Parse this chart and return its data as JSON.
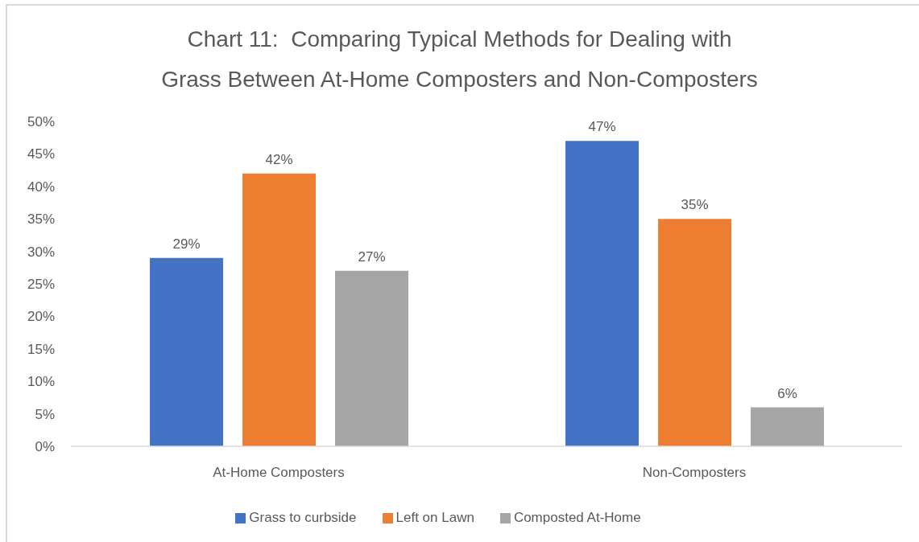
{
  "chart_data": {
    "type": "bar",
    "title": "Chart 11:  Comparing Typical Methods for Dealing with\nGrass Between At-Home Composters and Non-Composters",
    "categories": [
      "At-Home Composters",
      "Non-Composters"
    ],
    "series": [
      {
        "name": "Grass to curbside",
        "color": "#4472c4",
        "values": [
          29,
          47
        ],
        "value_labels": [
          "29%",
          "47%"
        ]
      },
      {
        "name": "Left on Lawn",
        "color": "#ed7d31",
        "values": [
          42,
          35
        ],
        "value_labels": [
          "42%",
          "35%"
        ]
      },
      {
        "name": "Composted At-Home",
        "color": "#a5a5a5",
        "values": [
          27,
          6
        ],
        "value_labels": [
          "27%",
          "6%"
        ]
      }
    ],
    "ylim": [
      0,
      50
    ],
    "yticks": [
      {
        "value": 0,
        "label": "0%"
      },
      {
        "value": 5,
        "label": "5%"
      },
      {
        "value": 10,
        "label": "10%"
      },
      {
        "value": 15,
        "label": "15%"
      },
      {
        "value": 20,
        "label": "20%"
      },
      {
        "value": 25,
        "label": "25%"
      },
      {
        "value": 30,
        "label": "30%"
      },
      {
        "value": 35,
        "label": "35%"
      },
      {
        "value": 40,
        "label": "40%"
      },
      {
        "value": 45,
        "label": "45%"
      },
      {
        "value": 50,
        "label": "50%"
      }
    ],
    "legend": "bottom"
  }
}
